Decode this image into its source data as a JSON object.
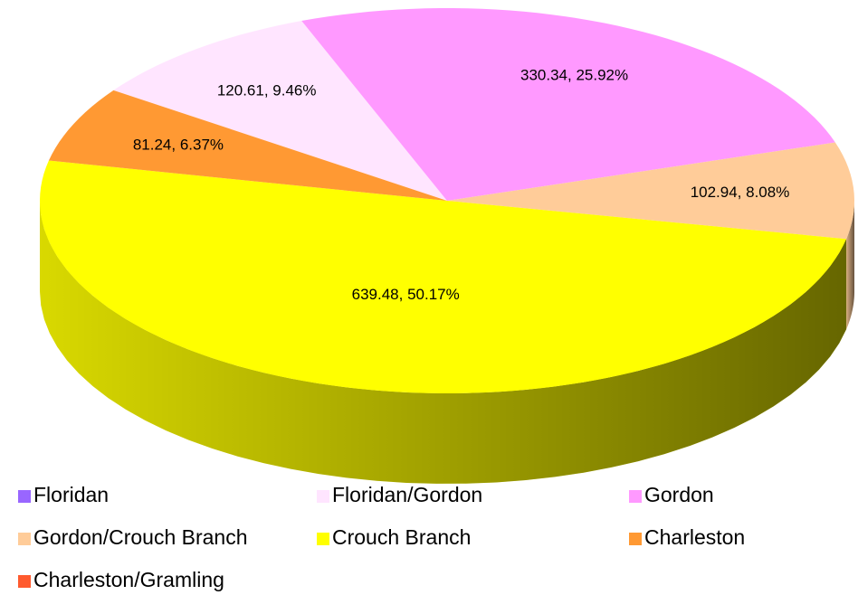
{
  "chart_data": {
    "type": "pie",
    "categories": [
      "Floridan",
      "Floridan/Gordon",
      "Gordon",
      "Gordon/Crouch Branch",
      "Crouch Branch",
      "Charleston",
      "Charleston/Gramling"
    ],
    "values": [
      0,
      120.61,
      330.34,
      102.94,
      639.48,
      81.24,
      0
    ],
    "value_labels": [
      null,
      "120.61, 9.46%",
      "330.34, 25.92%",
      "102.94, 8.08%",
      "639.48, 50.17%",
      "81.24, 6.37%",
      null
    ],
    "colors": [
      "#9966ff",
      "#ffe5ff",
      "#ff99ff",
      "#ffcc99",
      "#ffff00",
      "#ff9933",
      "#ff5a2e"
    ],
    "legend": "bottom"
  }
}
